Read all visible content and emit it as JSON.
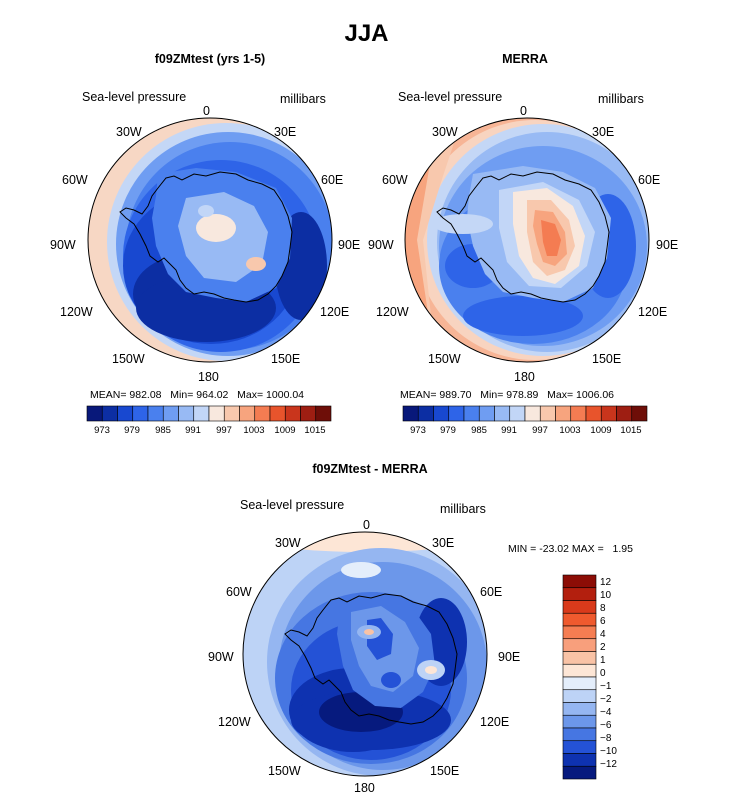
{
  "title": "JJA",
  "panels": [
    {
      "id": "model",
      "title": "f09ZMtest (yrs 1-5)",
      "variable": "Sea-level pressure",
      "units": "millibars",
      "lon_labels": [
        "0",
        "30E",
        "60E",
        "90E",
        "120E",
        "150E",
        "180",
        "150W",
        "120W",
        "90W",
        "60W",
        "30W"
      ],
      "stats": {
        "mean_label": "MEAN=",
        "mean": "982.08",
        "min_label": "Min=",
        "min": "964.02",
        "max_label": "Max=",
        "max": "1000.04"
      },
      "colorbar": {
        "labels": [
          "973",
          "979",
          "985",
          "991",
          "997",
          "1003",
          "1009",
          "1015"
        ],
        "colors": [
          "#08187a",
          "#0c2ea3",
          "#1848d0",
          "#2e64e8",
          "#4a80ee",
          "#6f9df2",
          "#98baf4",
          "#c2d6f7",
          "#f8e8de",
          "#f8c8ad",
          "#f7a47e",
          "#f47c52",
          "#e8542c",
          "#c9351c",
          "#9e1e12",
          "#6e0e08"
        ]
      }
    },
    {
      "id": "obs",
      "title": "MERRA",
      "variable": "Sea-level pressure",
      "units": "millibars",
      "lon_labels": [
        "0",
        "30E",
        "60E",
        "90E",
        "120E",
        "150E",
        "180",
        "150W",
        "120W",
        "90W",
        "60W",
        "30W"
      ],
      "stats": {
        "mean_label": "MEAN=",
        "mean": "989.70",
        "min_label": "Min=",
        "min": "978.89",
        "max_label": "Max=",
        "max": "1006.06"
      },
      "colorbar": {
        "labels": [
          "973",
          "979",
          "985",
          "991",
          "997",
          "1003",
          "1009",
          "1015"
        ],
        "colors": [
          "#08187a",
          "#0c2ea3",
          "#1848d0",
          "#2e64e8",
          "#4a80ee",
          "#6f9df2",
          "#98baf4",
          "#c2d6f7",
          "#f8e8de",
          "#f8c8ad",
          "#f7a47e",
          "#f47c52",
          "#e8542c",
          "#c9351c",
          "#9e1e12",
          "#6e0e08"
        ]
      }
    },
    {
      "id": "diff",
      "title": "f09ZMtest - MERRA",
      "variable": "Sea-level pressure",
      "units": "millibars",
      "lon_labels": [
        "0",
        "30E",
        "60E",
        "90E",
        "120E",
        "150E",
        "180",
        "150W",
        "120W",
        "90W",
        "60W",
        "30W"
      ],
      "stats": {
        "min_label": "MIN =",
        "min": "-23.02",
        "max_label": "MAX =",
        "max": "1.95"
      },
      "colorbar": {
        "labels": [
          "12",
          "10",
          "8",
          "6",
          "4",
          "2",
          "1",
          "0",
          "−1",
          "−2",
          "−4",
          "−6",
          "−8",
          "−10",
          "−12"
        ],
        "colors": [
          "#8c0d06",
          "#b31f0e",
          "#d93a1b",
          "#ef5a2e",
          "#f57d52",
          "#f89f7c",
          "#f9c3a6",
          "#fde6d6",
          "#e4eefb",
          "#bdd3f6",
          "#95b6f1",
          "#6c97ea",
          "#4676e2",
          "#2452d6",
          "#0e32b0",
          "#061a7e"
        ]
      }
    }
  ]
}
